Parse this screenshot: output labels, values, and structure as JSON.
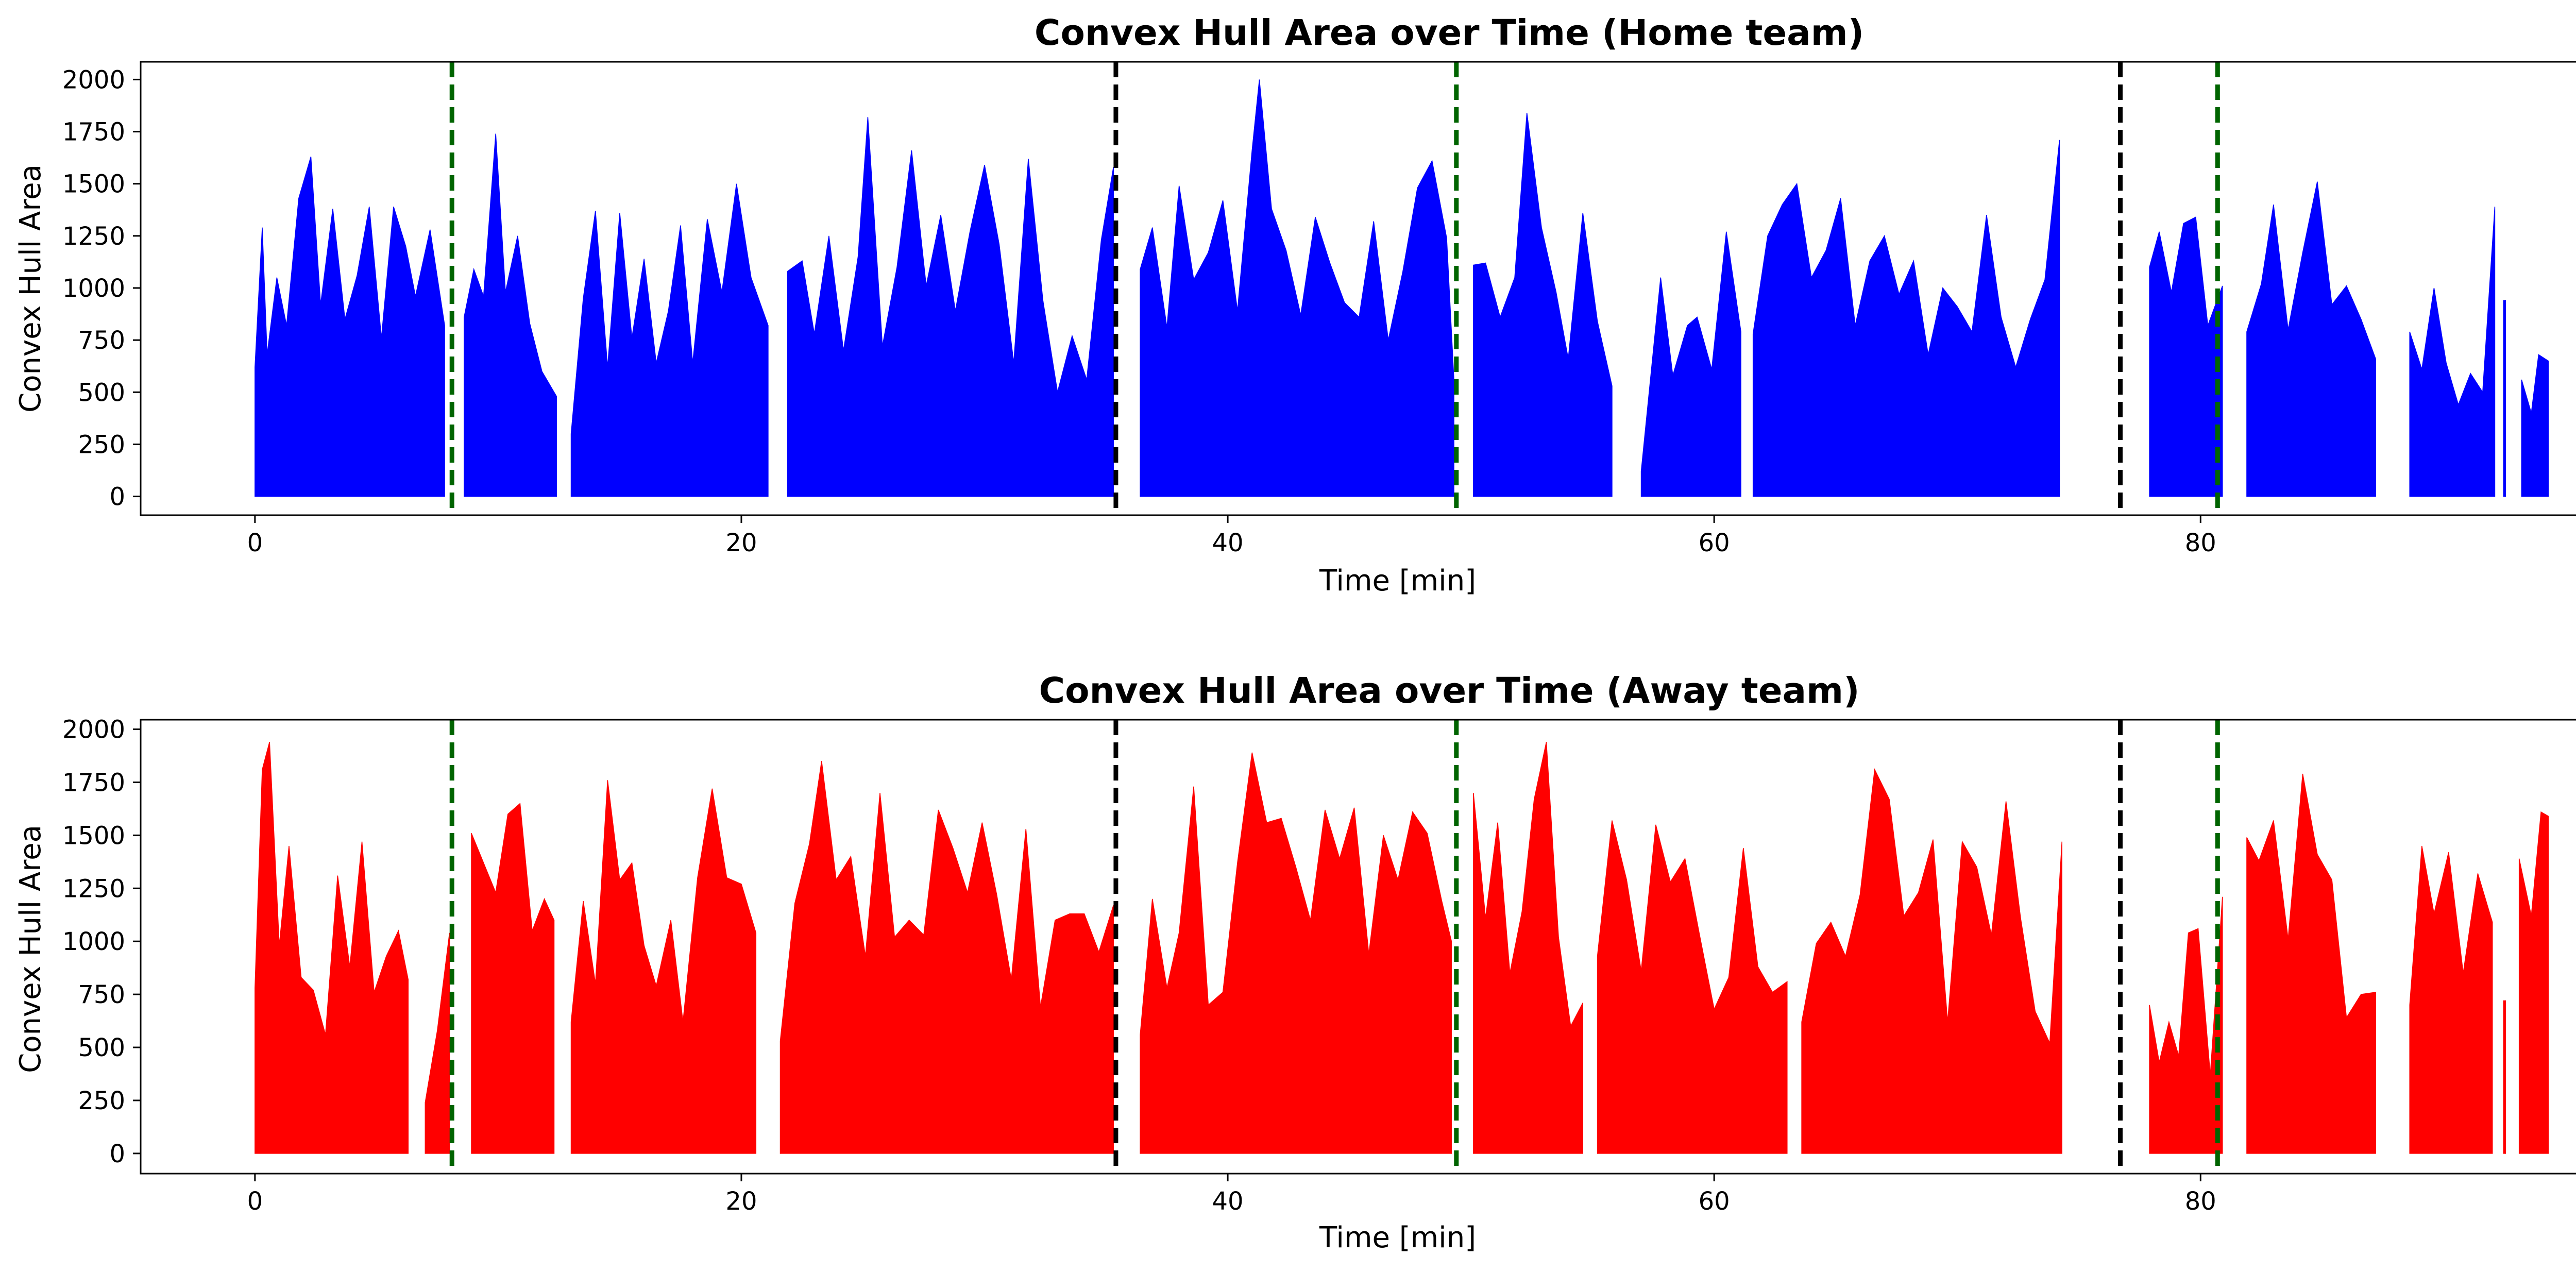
{
  "colors": {
    "home": "#0000ff",
    "away": "#ff0000",
    "green_line": "#006400",
    "black_line": "#000000"
  },
  "chart_data": [
    {
      "type": "area",
      "title": "Convex Hull Area over Time (Home team)",
      "xlabel": "Time [min]",
      "ylabel": "Convex Hull Area",
      "xlim": [
        -4.7,
        98.7
      ],
      "ylim": [
        -90,
        2085
      ],
      "xticks": [
        0,
        20,
        40,
        60,
        80
      ],
      "yticks": [
        0,
        250,
        500,
        750,
        1000,
        1250,
        1500,
        1750,
        2000
      ],
      "green_dashed_lines_x": [
        8.1,
        49.4,
        80.7
      ],
      "black_dashed_lines_x": [
        35.4,
        76.7
      ],
      "series": [
        {
          "color": "#0000ff",
          "segments": [
            {
              "x": [
                0.0,
                0.3,
                0.5,
                0.9,
                1.3,
                1.8,
                2.3,
                2.7,
                3.2,
                3.7,
                4.2,
                4.7,
                5.2,
                5.7,
                6.2,
                6.6,
                7.2,
                7.8
              ],
              "y": [
                620,
                1290,
                680,
                1050,
                820,
                1430,
                1630,
                920,
                1380,
                850,
                1060,
                1390,
                760,
                1390,
                1200,
                960,
                1280,
                820
              ]
            },
            {
              "x": [
                8.6,
                9.0,
                9.4,
                9.9,
                10.3,
                10.8,
                11.3,
                11.8,
                12.4
              ],
              "y": [
                860,
                1090,
                960,
                1740,
                980,
                1250,
                830,
                600,
                480
              ]
            },
            {
              "x": [
                13.0,
                13.5,
                14.0,
                14.5,
                15.0,
                15.5,
                16.0,
                16.5,
                17.0,
                17.5,
                18.0,
                18.6,
                19.2,
                19.8,
                20.4,
                21.1
              ],
              "y": [
                300,
                950,
                1370,
                620,
                1360,
                760,
                1140,
                640,
                890,
                1300,
                640,
                1330,
                980,
                1500,
                1050,
                820
              ]
            },
            {
              "x": [
                21.9,
                22.5,
                23.0,
                23.6,
                24.2,
                24.8,
                25.2,
                25.8,
                26.4,
                27.0,
                27.6,
                28.2,
                28.8,
                29.4,
                30.0,
                30.6,
                31.2,
                31.8,
                32.4,
                33.0,
                33.6,
                34.2,
                34.8,
                35.3
              ],
              "y": [
                1080,
                1130,
                780,
                1250,
                700,
                1150,
                1820,
                720,
                1100,
                1660,
                1010,
                1350,
                890,
                1270,
                1590,
                1210,
                640,
                1620,
                940,
                500,
                770,
                560,
                1230,
                1580
              ]
            },
            {
              "x": [
                36.4,
                36.9,
                37.5,
                38.0,
                38.6,
                39.2,
                39.8,
                40.4,
                41.0,
                41.3,
                41.8,
                42.4,
                43.0,
                43.6,
                44.2,
                44.8,
                45.4,
                46.0,
                46.6,
                47.2,
                47.8,
                48.4,
                49.0,
                49.3
              ],
              "y": [
                1090,
                1290,
                810,
                1490,
                1040,
                1170,
                1420,
                890,
                1660,
                2000,
                1380,
                1180,
                870,
                1340,
                1120,
                930,
                860,
                1320,
                750,
                1080,
                1480,
                1610,
                1240,
                560
              ]
            },
            {
              "x": [
                50.1,
                50.6,
                51.2,
                51.8,
                52.3,
                52.9,
                53.5,
                54.0,
                54.6,
                55.2,
                55.8
              ],
              "y": [
                1110,
                1120,
                860,
                1050,
                1840,
                1290,
                980,
                660,
                1360,
                840,
                530
              ]
            },
            {
              "x": [
                57.0,
                57.8,
                58.3,
                58.9,
                59.3,
                59.9,
                60.5,
                61.1
              ],
              "y": [
                120,
                1050,
                580,
                820,
                860,
                610,
                1270,
                790
              ]
            },
            {
              "x": [
                61.6,
                62.2,
                62.8,
                63.4,
                64.0,
                64.6,
                65.2,
                65.8,
                66.4,
                67.0,
                67.6,
                68.2,
                68.8,
                69.4,
                70.0,
                70.6,
                71.2,
                71.8,
                72.4,
                73.0,
                73.6,
                74.2
              ],
              "y": [
                780,
                1250,
                1400,
                1500,
                1050,
                1180,
                1430,
                820,
                1130,
                1250,
                970,
                1130,
                680,
                1000,
                910,
                790,
                1350,
                860,
                620,
                850,
                1040,
                1710
              ]
            },
            {
              "x": [
                77.9,
                78.3,
                78.8,
                79.3,
                79.8,
                80.3,
                80.9
              ],
              "y": [
                1100,
                1270,
                980,
                1310,
                1340,
                820,
                1010
              ]
            },
            {
              "x": [
                81.9,
                82.5,
                83.0,
                83.6,
                84.2,
                84.8,
                85.4,
                86.0,
                86.6,
                87.2
              ],
              "y": [
                790,
                1020,
                1400,
                800,
                1170,
                1510,
                920,
                1010,
                850,
                660
              ]
            },
            {
              "x": [
                88.6,
                89.1,
                89.6,
                90.1,
                90.6,
                91.1,
                91.6,
                92.1
              ],
              "y": [
                790,
                610,
                1000,
                640,
                440,
                590,
                500,
                1390
              ]
            },
            {
              "x": [
                92.5
              ],
              "y": [
                940
              ]
            },
            {
              "x": [
                93.2,
                93.6,
                93.9,
                94.3
              ],
              "y": [
                560,
                400,
                680,
                650
              ]
            }
          ]
        }
      ]
    },
    {
      "type": "area",
      "title": "Convex Hull Area over Time (Away team)",
      "xlabel": "Time [min]",
      "ylabel": "Convex Hull Area",
      "xlim": [
        -4.7,
        98.7
      ],
      "ylim": [
        -95,
        2045
      ],
      "xticks": [
        0,
        20,
        40,
        60,
        80
      ],
      "yticks": [
        0,
        250,
        500,
        750,
        1000,
        1250,
        1500,
        1750,
        2000
      ],
      "green_dashed_lines_x": [
        8.1,
        49.4,
        80.7
      ],
      "black_dashed_lines_x": [
        35.4,
        76.7
      ],
      "series": [
        {
          "color": "#ff0000",
          "segments": [
            {
              "x": [
                0.0,
                0.3,
                0.6,
                1.0,
                1.4,
                1.9,
                2.4,
                2.9,
                3.4,
                3.9,
                4.4,
                4.9,
                5.4,
                5.9,
                6.3
              ],
              "y": [
                780,
                1810,
                1940,
                980,
                1450,
                830,
                770,
                560,
                1310,
                880,
                1470,
                760,
                930,
                1050,
                820
              ]
            },
            {
              "x": [
                7.0,
                7.5,
                8.0
              ],
              "y": [
                240,
                580,
                1040
              ]
            },
            {
              "x": [
                8.9,
                9.4,
                9.9,
                10.4,
                10.9,
                11.4,
                11.9,
                12.3
              ],
              "y": [
                1510,
                1370,
                1230,
                1600,
                1650,
                1050,
                1200,
                1100
              ]
            },
            {
              "x": [
                13.0,
                13.5,
                14.0,
                14.5,
                15.0,
                15.5,
                16.0,
                16.5,
                17.1,
                17.6,
                18.2,
                18.8,
                19.4,
                20.0,
                20.6
              ],
              "y": [
                620,
                1190,
                800,
                1760,
                1290,
                1370,
                980,
                790,
                1100,
                620,
                1300,
                1720,
                1300,
                1270,
                1040
              ]
            },
            {
              "x": [
                21.6,
                22.2,
                22.8,
                23.3,
                23.9,
                24.5,
                25.1,
                25.7,
                26.3,
                26.9,
                27.5,
                28.1,
                28.7,
                29.3,
                29.9,
                30.5,
                31.1,
                31.7,
                32.3,
                32.9,
                33.5,
                34.1,
                34.7,
                35.3
              ],
              "y": [
                530,
                1180,
                1460,
                1850,
                1290,
                1400,
                930,
                1700,
                1020,
                1100,
                1030,
                1620,
                1440,
                1230,
                1560,
                1220,
                820,
                1530,
                690,
                1100,
                1130,
                1130,
                950,
                1170
              ]
            },
            {
              "x": [
                36.4,
                36.9,
                37.5,
                38.0,
                38.6,
                39.2,
                39.8,
                40.4,
                41.0,
                41.6,
                42.2,
                42.8,
                43.4,
                44.0,
                44.6,
                45.2,
                45.8,
                46.4,
                47.0,
                47.6,
                48.2,
                48.8,
                49.2
              ],
              "y": [
                560,
                1200,
                780,
                1040,
                1730,
                700,
                760,
                1370,
                1890,
                1560,
                1580,
                1350,
                1100,
                1620,
                1390,
                1630,
                940,
                1500,
                1290,
                1610,
                1510,
                1190,
                1000
              ]
            },
            {
              "x": [
                50.1,
                50.6,
                51.1,
                51.6,
                52.1,
                52.6,
                53.1,
                53.6,
                54.1,
                54.6
              ],
              "y": [
                1700,
                1110,
                1560,
                850,
                1140,
                1670,
                1940,
                1020,
                600,
                710
              ]
            },
            {
              "x": [
                55.2,
                55.8,
                56.4,
                57.0,
                57.6,
                58.2,
                58.8,
                59.4,
                60.0,
                60.6,
                61.2,
                61.8,
                62.4,
                63.0
              ],
              "y": [
                930,
                1570,
                1290,
                860,
                1550,
                1280,
                1390,
                1030,
                680,
                830,
                1440,
                880,
                760,
                810
              ]
            },
            {
              "x": [
                63.6,
                64.2,
                64.8,
                65.4,
                66.0,
                66.6,
                67.2,
                67.8,
                68.4,
                69.0,
                69.6,
                70.2,
                70.8,
                71.4,
                72.0,
                72.6,
                73.2,
                73.8,
                74.3
              ],
              "y": [
                620,
                990,
                1090,
                930,
                1220,
                1810,
                1670,
                1120,
                1230,
                1480,
                620,
                1470,
                1350,
                1030,
                1660,
                1110,
                670,
                520,
                1470
              ]
            },
            {
              "x": [
                77.9,
                78.3,
                78.7,
                79.1,
                79.5,
                79.9,
                80.4,
                80.9
              ],
              "y": [
                700,
                430,
                620,
                460,
                1040,
                1060,
                370,
                1210
              ]
            },
            {
              "x": [
                81.9,
                82.4,
                83.0,
                83.6,
                84.2,
                84.8,
                85.4,
                86.0,
                86.6,
                87.2
              ],
              "y": [
                1490,
                1380,
                1570,
                1010,
                1790,
                1410,
                1290,
                640,
                750,
                760
              ]
            },
            {
              "x": [
                88.6,
                89.1,
                89.6,
                90.2,
                90.8,
                91.4,
                92.0
              ],
              "y": [
                700,
                1450,
                1130,
                1420,
                850,
                1320,
                1090
              ]
            },
            {
              "x": [
                92.5
              ],
              "y": [
                720
              ]
            },
            {
              "x": [
                93.1,
                93.6,
                94.0,
                94.3
              ],
              "y": [
                1390,
                1120,
                1610,
                1590
              ]
            }
          ]
        }
      ]
    }
  ]
}
